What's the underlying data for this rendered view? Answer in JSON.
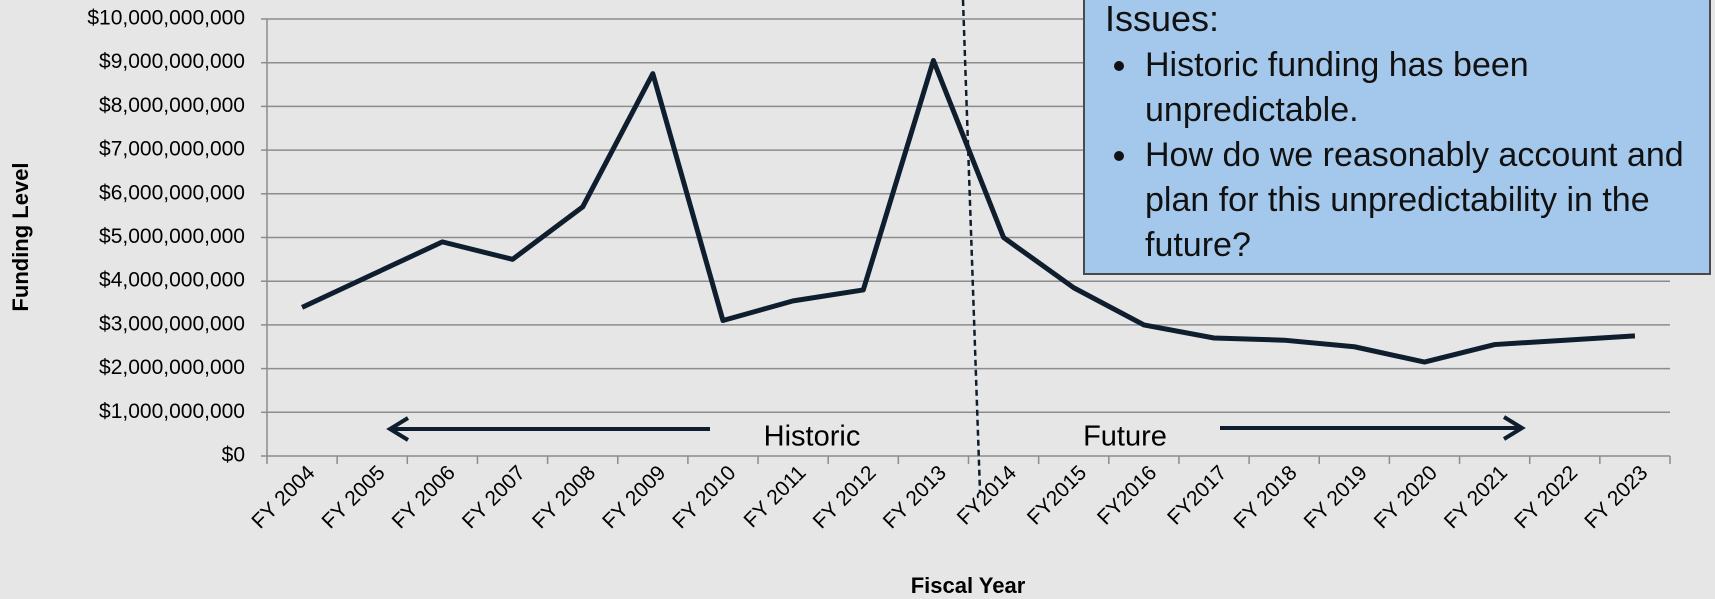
{
  "chart_data": {
    "type": "line",
    "x_label": "Fiscal Year",
    "y_label": "Funding Level",
    "categories": [
      "FY 2004",
      "FY 2005",
      "FY 2006",
      "FY 2007",
      "FY 2008",
      "FY 2009",
      "FY 2010",
      "FY 2011",
      "FY 2012",
      "FY 2013",
      "FY2014",
      "FY2015",
      "FY2016",
      "FY2017",
      "FY 2018",
      "FY 2019",
      "FY 2020",
      "FY 2021",
      "FY 2022",
      "FY 2023"
    ],
    "values": [
      3400000000,
      4150000000,
      4900000000,
      4500000000,
      5700000000,
      8750000000,
      3100000000,
      3550000000,
      3800000000,
      9050000000,
      5000000000,
      3850000000,
      3000000000,
      2700000000,
      2650000000,
      2500000000,
      2150000000,
      2550000000,
      2650000000,
      2750000000
    ],
    "color": "#0f1e2e",
    "ylim": [
      0,
      10000000000
    ],
    "yticks": [
      {
        "value": 0,
        "label": "$0"
      },
      {
        "value": 1000000000,
        "label": "$1,000,000,000"
      },
      {
        "value": 2000000000,
        "label": "$2,000,000,000"
      },
      {
        "value": 3000000000,
        "label": "$3,000,000,000"
      },
      {
        "value": 4000000000,
        "label": "$4,000,000,000"
      },
      {
        "value": 5000000000,
        "label": "$5,000,000,000"
      },
      {
        "value": 6000000000,
        "label": "$6,000,000,000"
      },
      {
        "value": 7000000000,
        "label": "$7,000,000,000"
      },
      {
        "value": 8000000000,
        "label": "$8,000,000,000"
      },
      {
        "value": 9000000000,
        "label": "$9,000,000,000"
      },
      {
        "value": 10000000000,
        "label": "$10,000,000,000"
      }
    ],
    "grid": true,
    "annotations": [
      "Historic",
      "Future"
    ],
    "textbox": {
      "title": "Issues:",
      "bullets": [
        "Historic funding has been unpredictable.",
        "How do we reasonably account and plan for this unpredictability in the future?"
      ]
    }
  }
}
